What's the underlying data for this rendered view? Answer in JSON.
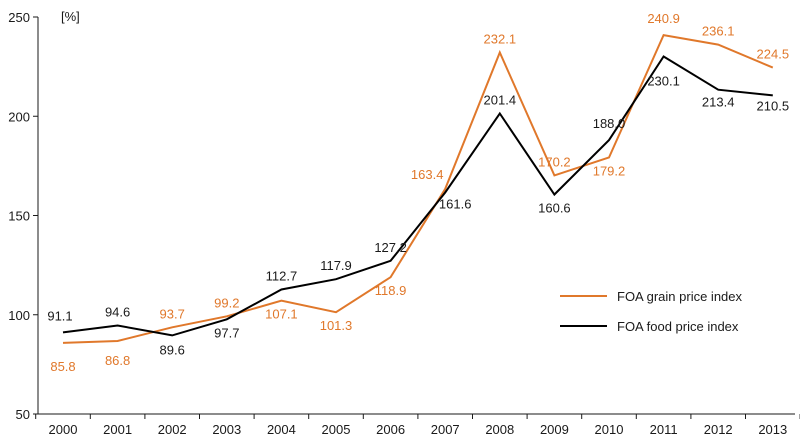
{
  "chart_data": {
    "type": "line",
    "title": "",
    "xlabel": "",
    "ylabel": "",
    "y_unit": "[%]",
    "x": [
      "2000",
      "2001",
      "2002",
      "2003",
      "2004",
      "2005",
      "2006",
      "2007",
      "2008",
      "2009",
      "2010",
      "2011",
      "2012",
      "2013"
    ],
    "ylim": [
      50,
      250
    ],
    "yticks": [
      50,
      100,
      150,
      200,
      250
    ],
    "grid": false,
    "legend_position": "right",
    "series": [
      {
        "name": "FOA grain price index",
        "color": "#e0782b",
        "values": [
          85.8,
          86.8,
          93.7,
          99.2,
          107.1,
          101.3,
          118.9,
          163.4,
          232.1,
          170.2,
          179.2,
          240.9,
          236.1,
          224.5
        ],
        "labels": [
          "85.8",
          "86.8",
          "93.7",
          "99.2",
          "107.1",
          "101.3",
          "118.9",
          "163.4",
          "232.1",
          "170.2",
          "179.2",
          "240.9",
          "236.1",
          "224.5"
        ]
      },
      {
        "name": "FOA food price index",
        "color": "#000000",
        "values": [
          91.1,
          94.6,
          89.6,
          97.7,
          112.7,
          117.9,
          127.2,
          161.6,
          201.4,
          160.6,
          188.0,
          230.1,
          213.4,
          210.5
        ],
        "labels": [
          "91.1",
          "94.6",
          "89.6",
          "97.7",
          "112.7",
          "117.9",
          "127.2",
          "161.6",
          "201.4",
          "160.6",
          "188.0",
          "230.1",
          "213.4",
          "210.5"
        ]
      }
    ]
  }
}
